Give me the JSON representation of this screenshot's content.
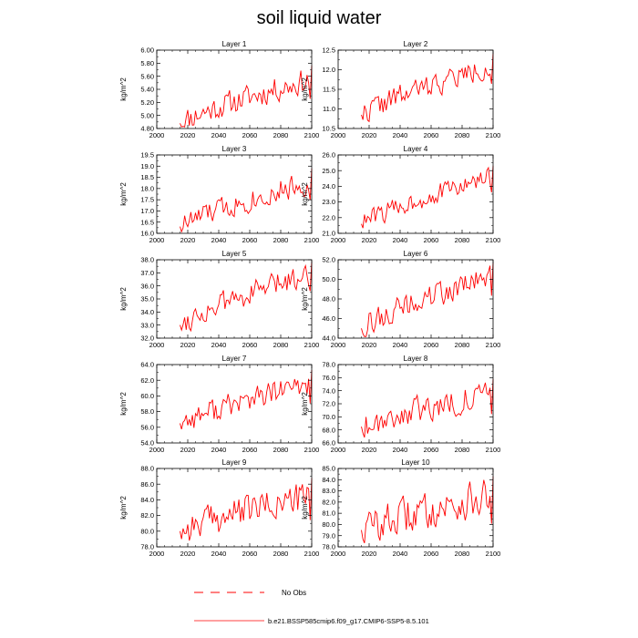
{
  "page": {
    "title": "soil liquid water"
  },
  "legend": {
    "obs_label": "No Obs",
    "model_label": "b.e21.BSSP585cmip6.f09_g17.CMIP6-SSP5-8.5.101",
    "obs_color": "#ff0000",
    "model_color": "#ff0000"
  },
  "colors": {
    "line": "#ff0000",
    "axis": "#000000",
    "background": "#ffffff"
  },
  "chart_data": [
    {
      "type": "line",
      "title": "Layer 1",
      "ylabel": "kg/m^2",
      "xlim": [
        2000,
        2100
      ],
      "ylim": [
        4.8,
        6.0
      ],
      "xticks": [
        2000,
        2020,
        2040,
        2060,
        2080,
        2100
      ],
      "xtick_labels": [
        "2000",
        "2020",
        "2040",
        "2060",
        "2080",
        "2100"
      ],
      "yticks": [
        4.8,
        5.0,
        5.2,
        5.4,
        5.6,
        5.8,
        6.0
      ],
      "ytick_labels": [
        "4.80",
        "5.00",
        "5.20",
        "5.40",
        "5.60",
        "5.80",
        "6.00"
      ],
      "x_start": 2015,
      "x_end": 2100,
      "y_start": 4.88,
      "y_end": 5.55,
      "noise": 0.18,
      "seed": 11,
      "series": [
        {
          "name": "b.e21.BSSP585cmip6.f09_g17.CMIP6-SSP5-8.5.101",
          "color": "#ff0000"
        }
      ]
    },
    {
      "type": "line",
      "title": "Layer 2",
      "ylabel": "kg/m^2",
      "xlim": [
        2000,
        2100
      ],
      "ylim": [
        10.5,
        12.5
      ],
      "xticks": [
        2000,
        2020,
        2040,
        2060,
        2080,
        2100
      ],
      "xtick_labels": [
        "2000",
        "2020",
        "2040",
        "2060",
        "2080",
        "2100"
      ],
      "yticks": [
        10.5,
        11.0,
        11.5,
        12.0,
        12.5
      ],
      "ytick_labels": [
        "10.5",
        "11.0",
        "11.5",
        "12.0",
        "12.5"
      ],
      "x_start": 2015,
      "x_end": 2100,
      "y_start": 10.85,
      "y_end": 12.1,
      "noise": 0.28,
      "seed": 22,
      "series": [
        {
          "name": "b.e21.BSSP585cmip6.f09_g17.CMIP6-SSP5-8.5.101",
          "color": "#ff0000"
        }
      ]
    },
    {
      "type": "line",
      "title": "Layer 3",
      "ylabel": "kg/m^2",
      "xlim": [
        2000,
        2100
      ],
      "ylim": [
        16.0,
        19.5
      ],
      "xticks": [
        2000,
        2020,
        2040,
        2060,
        2080,
        2100
      ],
      "xtick_labels": [
        "2000",
        "2020",
        "2040",
        "2060",
        "2080",
        "2100"
      ],
      "yticks": [
        16.0,
        16.5,
        17.0,
        17.5,
        18.0,
        18.5,
        19.0,
        19.5
      ],
      "ytick_labels": [
        "16.0",
        "16.5",
        "17.0",
        "17.5",
        "18.0",
        "18.5",
        "19.0",
        "19.5"
      ],
      "x_start": 2015,
      "x_end": 2100,
      "y_start": 16.3,
      "y_end": 18.3,
      "noise": 0.5,
      "seed": 33,
      "series": [
        {
          "name": "b.e21.BSSP585cmip6.f09_g17.CMIP6-SSP5-8.5.101",
          "color": "#ff0000"
        }
      ]
    },
    {
      "type": "line",
      "title": "Layer 4",
      "ylabel": "kg/m^2",
      "xlim": [
        2000,
        2100
      ],
      "ylim": [
        21.0,
        26.0
      ],
      "xticks": [
        2000,
        2020,
        2040,
        2060,
        2080,
        2100
      ],
      "xtick_labels": [
        "2000",
        "2020",
        "2040",
        "2060",
        "2080",
        "2100"
      ],
      "yticks": [
        21.0,
        22.0,
        23.0,
        24.0,
        25.0,
        26.0
      ],
      "ytick_labels": [
        "21.0",
        "22.0",
        "23.0",
        "24.0",
        "25.0",
        "26.0"
      ],
      "x_start": 2015,
      "x_end": 2100,
      "y_start": 21.6,
      "y_end": 24.6,
      "noise": 0.6,
      "seed": 44,
      "series": [
        {
          "name": "b.e21.BSSP585cmip6.f09_g17.CMIP6-SSP5-8.5.101",
          "color": "#ff0000"
        }
      ]
    },
    {
      "type": "line",
      "title": "Layer 5",
      "ylabel": "kg/m^2",
      "xlim": [
        2000,
        2100
      ],
      "ylim": [
        32.0,
        38.0
      ],
      "xticks": [
        2000,
        2020,
        2040,
        2060,
        2080,
        2100
      ],
      "xtick_labels": [
        "2000",
        "2020",
        "2040",
        "2060",
        "2080",
        "2100"
      ],
      "yticks": [
        32.0,
        33.0,
        34.0,
        35.0,
        36.0,
        37.0,
        38.0
      ],
      "ytick_labels": [
        "32.0",
        "33.0",
        "34.0",
        "35.0",
        "36.0",
        "37.0",
        "38.0"
      ],
      "x_start": 2015,
      "x_end": 2100,
      "y_start": 33.0,
      "y_end": 37.0,
      "noise": 0.85,
      "seed": 55,
      "series": [
        {
          "name": "b.e21.BSSP585cmip6.f09_g17.CMIP6-SSP5-8.5.101",
          "color": "#ff0000"
        }
      ]
    },
    {
      "type": "line",
      "title": "Layer 6",
      "ylabel": "kg/m^2",
      "xlim": [
        2000,
        2100
      ],
      "ylim": [
        44.0,
        52.0
      ],
      "xticks": [
        2000,
        2020,
        2040,
        2060,
        2080,
        2100
      ],
      "xtick_labels": [
        "2000",
        "2020",
        "2040",
        "2060",
        "2080",
        "2100"
      ],
      "yticks": [
        44.0,
        46.0,
        48.0,
        50.0,
        52.0
      ],
      "ytick_labels": [
        "44.0",
        "46.0",
        "48.0",
        "50.0",
        "52.0"
      ],
      "x_start": 2015,
      "x_end": 2100,
      "y_start": 45.0,
      "y_end": 50.3,
      "noise": 1.2,
      "seed": 66,
      "series": [
        {
          "name": "b.e21.BSSP585cmip6.f09_g17.CMIP6-SSP5-8.5.101",
          "color": "#ff0000"
        }
      ]
    },
    {
      "type": "line",
      "title": "Layer 7",
      "ylabel": "kg/m^2",
      "xlim": [
        2000,
        2100
      ],
      "ylim": [
        54.0,
        64.0
      ],
      "xticks": [
        2000,
        2020,
        2040,
        2060,
        2080,
        2100
      ],
      "xtick_labels": [
        "2000",
        "2020",
        "2040",
        "2060",
        "2080",
        "2100"
      ],
      "yticks": [
        54.0,
        56.0,
        58.0,
        60.0,
        62.0,
        64.0
      ],
      "ytick_labels": [
        "54.0",
        "56.0",
        "58.0",
        "60.0",
        "62.0",
        "64.0"
      ],
      "x_start": 2015,
      "x_end": 2100,
      "y_start": 56.5,
      "y_end": 61.5,
      "noise": 1.5,
      "seed": 77,
      "series": [
        {
          "name": "b.e21.BSSP585cmip6.f09_g17.CMIP6-SSP5-8.5.101",
          "color": "#ff0000"
        }
      ]
    },
    {
      "type": "line",
      "title": "Layer 8",
      "ylabel": "kg/m^2",
      "xlim": [
        2000,
        2100
      ],
      "ylim": [
        66.0,
        78.0
      ],
      "xticks": [
        2000,
        2020,
        2040,
        2060,
        2080,
        2100
      ],
      "xtick_labels": [
        "2000",
        "2020",
        "2040",
        "2060",
        "2080",
        "2100"
      ],
      "yticks": [
        66.0,
        68.0,
        70.0,
        72.0,
        74.0,
        76.0,
        78.0
      ],
      "ytick_labels": [
        "66.0",
        "68.0",
        "70.0",
        "72.0",
        "74.0",
        "76.0",
        "78.0"
      ],
      "x_start": 2015,
      "x_end": 2100,
      "y_start": 68.5,
      "y_end": 73.5,
      "noise": 1.9,
      "seed": 88,
      "series": [
        {
          "name": "b.e21.BSSP585cmip6.f09_g17.CMIP6-SSP5-8.5.101",
          "color": "#ff0000"
        }
      ]
    },
    {
      "type": "line",
      "title": "Layer 9",
      "ylabel": "kg/m^2",
      "xlim": [
        2000,
        2100
      ],
      "ylim": [
        78.0,
        88.0
      ],
      "xticks": [
        2000,
        2020,
        2040,
        2060,
        2080,
        2100
      ],
      "xtick_labels": [
        "2000",
        "2020",
        "2040",
        "2060",
        "2080",
        "2100"
      ],
      "yticks": [
        78.0,
        80.0,
        82.0,
        84.0,
        86.0,
        88.0
      ],
      "ytick_labels": [
        "78.0",
        "80.0",
        "82.0",
        "84.0",
        "86.0",
        "88.0"
      ],
      "x_start": 2015,
      "x_end": 2100,
      "y_start": 80.0,
      "y_end": 84.5,
      "noise": 1.9,
      "seed": 99,
      "series": [
        {
          "name": "b.e21.BSSP585cmip6.f09_g17.CMIP6-SSP5-8.5.101",
          "color": "#ff0000"
        }
      ]
    },
    {
      "type": "line",
      "title": "Layer 10",
      "ylabel": "kg/m^2",
      "xlim": [
        2000,
        2100
      ],
      "ylim": [
        78.0,
        85.0
      ],
      "xticks": [
        2000,
        2020,
        2040,
        2060,
        2080,
        2100
      ],
      "xtick_labels": [
        "2000",
        "2020",
        "2040",
        "2060",
        "2080",
        "2100"
      ],
      "yticks": [
        78.0,
        79.0,
        80.0,
        81.0,
        82.0,
        83.0,
        84.0,
        85.0
      ],
      "ytick_labels": [
        "78.0",
        "79.0",
        "80.0",
        "81.0",
        "82.0",
        "83.0",
        "84.0",
        "85.0"
      ],
      "x_start": 2015,
      "x_end": 2100,
      "y_start": 79.5,
      "y_end": 82.5,
      "noise": 1.5,
      "seed": 110,
      "series": [
        {
          "name": "b.e21.BSSP585cmip6.f09_g17.CMIP6-SSP5-8.5.101",
          "color": "#ff0000"
        }
      ]
    }
  ]
}
